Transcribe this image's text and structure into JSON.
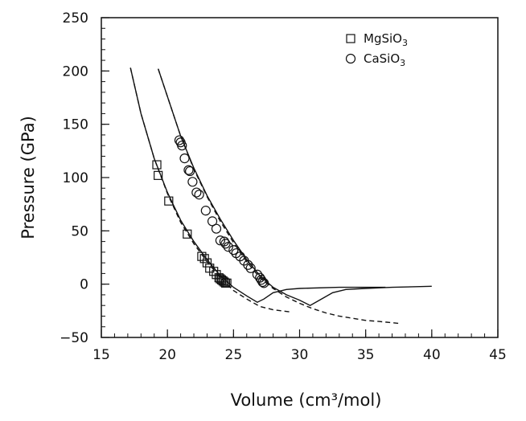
{
  "chart_data": {
    "type": "scatter",
    "title": "",
    "xlabel": "Volume (cm³/mol)",
    "ylabel": "Pressure (GPa)",
    "xlim": [
      15,
      45
    ],
    "ylim": [
      -50,
      250
    ],
    "xticks": [
      15,
      20,
      25,
      30,
      35,
      40,
      45
    ],
    "yticks": [
      -50,
      0,
      50,
      100,
      150,
      200,
      250
    ],
    "x_minor_step": 1,
    "y_minor_step": 10,
    "grid": false,
    "legend_position": "top-right",
    "series": [
      {
        "name": "MgSiO3",
        "marker": "square",
        "points": [
          [
            19.2,
            112
          ],
          [
            19.3,
            102
          ],
          [
            20.1,
            78
          ],
          [
            21.5,
            47
          ],
          [
            22.6,
            26
          ],
          [
            22.8,
            24
          ],
          [
            23.0,
            20
          ],
          [
            23.2,
            15
          ],
          [
            23.5,
            12
          ],
          [
            23.7,
            9
          ],
          [
            23.9,
            6
          ],
          [
            24.0,
            5
          ],
          [
            24.1,
            4
          ],
          [
            24.2,
            3
          ],
          [
            24.3,
            2
          ],
          [
            24.4,
            1
          ],
          [
            24.5,
            1
          ]
        ]
      },
      {
        "name": "CaSiO3",
        "marker": "circle",
        "points": [
          [
            20.9,
            135
          ],
          [
            21.0,
            133
          ],
          [
            21.1,
            130
          ],
          [
            21.3,
            118
          ],
          [
            21.6,
            107
          ],
          [
            21.7,
            106
          ],
          [
            21.9,
            96
          ],
          [
            22.2,
            86
          ],
          [
            22.4,
            84
          ],
          [
            22.9,
            69
          ],
          [
            23.4,
            59
          ],
          [
            23.7,
            52
          ],
          [
            24.0,
            41
          ],
          [
            24.3,
            40
          ],
          [
            24.4,
            38
          ],
          [
            24.6,
            35
          ],
          [
            25.0,
            32
          ],
          [
            25.2,
            29
          ],
          [
            25.5,
            26
          ],
          [
            25.8,
            22
          ],
          [
            26.1,
            18
          ],
          [
            26.3,
            15
          ],
          [
            26.8,
            9
          ],
          [
            27.0,
            6
          ],
          [
            27.1,
            4
          ],
          [
            27.2,
            2
          ],
          [
            27.3,
            1
          ]
        ]
      }
    ],
    "curves": [
      {
        "style": "solid",
        "points": [
          [
            17.2,
            203
          ],
          [
            18.0,
            160
          ],
          [
            19.0,
            118
          ],
          [
            20.0,
            86
          ],
          [
            21.0,
            60
          ],
          [
            22.0,
            40
          ],
          [
            23.0,
            23
          ],
          [
            24.0,
            8
          ],
          [
            25.0,
            -3
          ],
          [
            26.0,
            -11
          ],
          [
            26.8,
            -17
          ],
          [
            27.3,
            -14
          ],
          [
            28.0,
            -8
          ],
          [
            29.0,
            -5
          ],
          [
            30.0,
            -4
          ],
          [
            33.0,
            -3
          ],
          [
            36.5,
            -3
          ]
        ]
      },
      {
        "style": "dashed",
        "points": [
          [
            17.2,
            203
          ],
          [
            18.0,
            160
          ],
          [
            19.0,
            118
          ],
          [
            20.0,
            85
          ],
          [
            21.0,
            58
          ],
          [
            22.0,
            38
          ],
          [
            23.0,
            21
          ],
          [
            24.0,
            6
          ],
          [
            25.0,
            -6
          ],
          [
            26.0,
            -14
          ],
          [
            27.0,
            -21
          ],
          [
            28.0,
            -24
          ],
          [
            29.3,
            -26
          ]
        ]
      },
      {
        "style": "solid",
        "points": [
          [
            19.3,
            202
          ],
          [
            20.0,
            176
          ],
          [
            21.0,
            139
          ],
          [
            22.0,
            109
          ],
          [
            23.0,
            83
          ],
          [
            24.0,
            61
          ],
          [
            25.0,
            41
          ],
          [
            26.0,
            23
          ],
          [
            27.0,
            8
          ],
          [
            28.0,
            -3
          ],
          [
            29.0,
            -10
          ],
          [
            30.0,
            -15
          ],
          [
            30.8,
            -20
          ],
          [
            31.5,
            -15
          ],
          [
            32.5,
            -8
          ],
          [
            33.5,
            -5
          ],
          [
            35.0,
            -4
          ],
          [
            37.0,
            -3
          ],
          [
            40.0,
            -2
          ]
        ]
      },
      {
        "style": "dashed",
        "points": [
          [
            19.3,
            202
          ],
          [
            20.0,
            176
          ],
          [
            21.0,
            139
          ],
          [
            22.0,
            108
          ],
          [
            23.0,
            82
          ],
          [
            24.0,
            59
          ],
          [
            25.0,
            39
          ],
          [
            26.0,
            21
          ],
          [
            27.0,
            6
          ],
          [
            28.0,
            -4
          ],
          [
            29.0,
            -12
          ],
          [
            30.0,
            -18
          ],
          [
            31.0,
            -23
          ],
          [
            32.0,
            -27
          ],
          [
            33.0,
            -30
          ],
          [
            34.0,
            -32
          ],
          [
            35.0,
            -34
          ],
          [
            36.0,
            -35
          ],
          [
            37.7,
            -37
          ]
        ]
      }
    ]
  }
}
